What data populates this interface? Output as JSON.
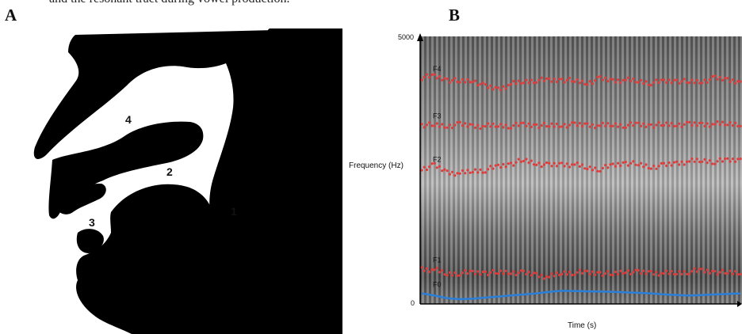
{
  "caption_fragment": "and the resonant tract during vowel production.",
  "panel_a": {
    "letter": "A",
    "labels": [
      {
        "id": "1",
        "text": "1"
      },
      {
        "id": "2",
        "text": "2"
      },
      {
        "id": "3",
        "text": "3"
      },
      {
        "id": "4",
        "text": "4"
      }
    ]
  },
  "panel_b": {
    "letter": "B",
    "chart_data": {
      "type": "line",
      "title": "",
      "xlabel": "Time (s)",
      "ylabel": "Frequency (Hz)",
      "ylim": [
        0,
        5000
      ],
      "y_ticks": [
        "5000",
        "0"
      ],
      "x_ticks_visible": [],
      "grid": false,
      "background": "spectrogram",
      "series": [
        {
          "name": "F4",
          "color": "#e03c3c",
          "style": "dots",
          "x": [
            0.0,
            0.04,
            0.08,
            0.12,
            0.16,
            0.2,
            0.24,
            0.28,
            0.32,
            0.36,
            0.4,
            0.44,
            0.48,
            0.52,
            0.56,
            0.6,
            0.64,
            0.68,
            0.72,
            0.76,
            0.8,
            0.84,
            0.88,
            0.92,
            0.96,
            1.0
          ],
          "y": [
            4280,
            4300,
            4240,
            4200,
            4230,
            4100,
            4060,
            4150,
            4200,
            4230,
            4220,
            4240,
            4210,
            4180,
            4250,
            4220,
            4230,
            4210,
            4180,
            4200,
            4220,
            4190,
            4210,
            4260,
            4240,
            4200
          ]
        },
        {
          "name": "F3",
          "color": "#e03c3c",
          "style": "dots",
          "x": [
            0.0,
            0.04,
            0.08,
            0.12,
            0.16,
            0.2,
            0.24,
            0.28,
            0.32,
            0.36,
            0.4,
            0.44,
            0.48,
            0.52,
            0.56,
            0.6,
            0.64,
            0.68,
            0.72,
            0.76,
            0.8,
            0.84,
            0.88,
            0.92,
            0.96,
            1.0
          ],
          "y": [
            3380,
            3370,
            3360,
            3380,
            3360,
            3350,
            3370,
            3360,
            3380,
            3370,
            3360,
            3380,
            3370,
            3380,
            3360,
            3380,
            3370,
            3380,
            3370,
            3380,
            3390,
            3380,
            3390,
            3390,
            3400,
            3400
          ]
        },
        {
          "name": "F2",
          "color": "#e03c3c",
          "style": "dots",
          "x": [
            0.0,
            0.04,
            0.08,
            0.12,
            0.16,
            0.2,
            0.24,
            0.28,
            0.32,
            0.36,
            0.4,
            0.44,
            0.48,
            0.52,
            0.56,
            0.6,
            0.64,
            0.68,
            0.72,
            0.76,
            0.8,
            0.84,
            0.88,
            0.92,
            0.96,
            1.0
          ],
          "y": [
            2550,
            2600,
            2480,
            2450,
            2500,
            2520,
            2580,
            2640,
            2700,
            2650,
            2600,
            2630,
            2620,
            2560,
            2540,
            2600,
            2660,
            2620,
            2580,
            2600,
            2650,
            2680,
            2700,
            2680,
            2700,
            2720
          ]
        },
        {
          "name": "F1",
          "color": "#e03c3c",
          "style": "dots",
          "x": [
            0.0,
            0.04,
            0.08,
            0.12,
            0.16,
            0.2,
            0.24,
            0.28,
            0.32,
            0.36,
            0.4,
            0.44,
            0.48,
            0.52,
            0.56,
            0.6,
            0.64,
            0.68,
            0.72,
            0.76,
            0.8,
            0.84,
            0.88,
            0.92,
            0.96,
            1.0
          ],
          "y": [
            640,
            620,
            540,
            560,
            560,
            570,
            560,
            580,
            550,
            530,
            480,
            560,
            570,
            560,
            560,
            530,
            600,
            560,
            570,
            550,
            560,
            590,
            600,
            580,
            560,
            570
          ]
        },
        {
          "name": "F0",
          "color": "#2a7fd8",
          "style": "line",
          "x": [
            0.0,
            0.04,
            0.08,
            0.12,
            0.16,
            0.2,
            0.24,
            0.28,
            0.32,
            0.36,
            0.4,
            0.44,
            0.48,
            0.52,
            0.56,
            0.6,
            0.64,
            0.68,
            0.72,
            0.76,
            0.8,
            0.84,
            0.88,
            0.92,
            0.96,
            1.0
          ],
          "y": [
            170,
            130,
            80,
            60,
            70,
            90,
            110,
            130,
            150,
            170,
            200,
            220,
            215,
            210,
            205,
            200,
            190,
            180,
            170,
            150,
            140,
            130,
            140,
            150,
            160,
            170
          ]
        }
      ]
    }
  }
}
